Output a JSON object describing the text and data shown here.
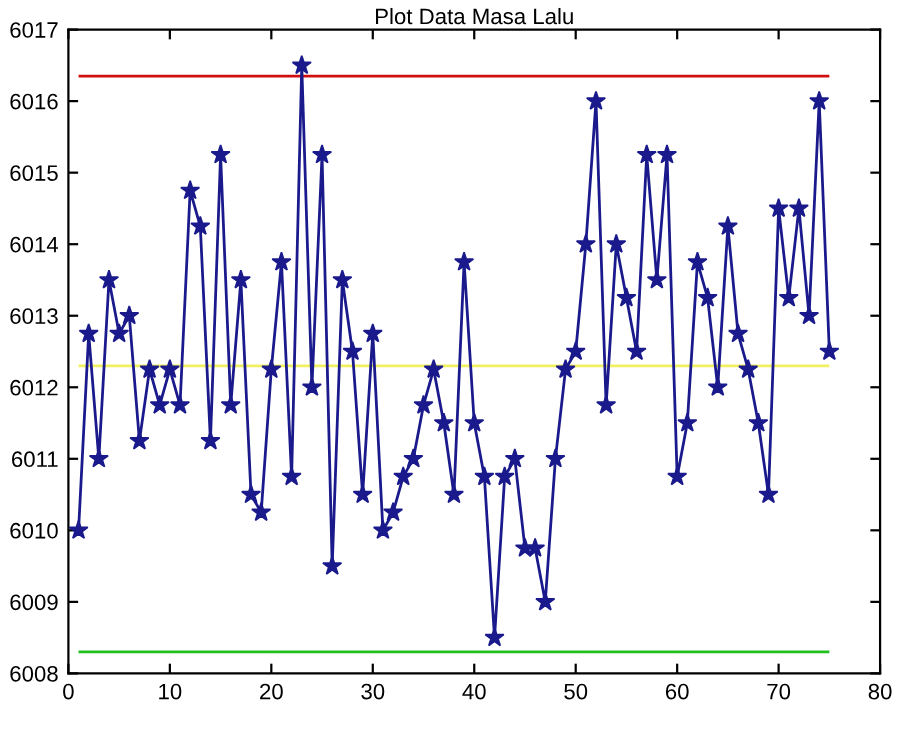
{
  "chart_data": {
    "type": "line",
    "title": "Plot Data Masa Lalu",
    "x": [
      1,
      2,
      3,
      4,
      5,
      6,
      7,
      8,
      9,
      10,
      11,
      12,
      13,
      14,
      15,
      16,
      17,
      18,
      19,
      20,
      21,
      22,
      23,
      24,
      25,
      26,
      27,
      28,
      29,
      30,
      31,
      32,
      33,
      34,
      35,
      36,
      37,
      38,
      39,
      40,
      41,
      42,
      43,
      44,
      45,
      46,
      47,
      48,
      49,
      50,
      51,
      52,
      53,
      54,
      55,
      56,
      57,
      58,
      59,
      60,
      61,
      62,
      63,
      64,
      65,
      66,
      67,
      68,
      69,
      70,
      71,
      72,
      73,
      74,
      75
    ],
    "series": [
      {
        "color": "#1a1a8c",
        "values": [
          6010,
          6012.75,
          6011,
          6013.5,
          6012.75,
          6013,
          6011.25,
          6012.25,
          6011.75,
          6012.25,
          6011.75,
          6014.75,
          6014.25,
          6011.25,
          6015.25,
          6011.75,
          6013.5,
          6010.5,
          6010.25,
          6012.25,
          6013.75,
          6010.75,
          6016.5,
          6012,
          6015.25,
          6009.5,
          6013.5,
          6012.5,
          6010.5,
          6012.75,
          6010,
          6010.25,
          6010.75,
          6011,
          6011.75,
          6012.25,
          6011.5,
          6010.5,
          6013.75,
          6011.5,
          6010.75,
          6008.5,
          6010.75,
          6011,
          6009.75,
          6009.75,
          6009,
          6011,
          6012.25,
          6012.5,
          6014,
          6016,
          6011.75,
          6014,
          6013.25,
          6012.5,
          6015.25,
          6013.5,
          6015.25,
          6010.75,
          6011.5,
          6013.75,
          6013.25,
          6012,
          6014.25,
          6012.75,
          6012.25,
          6011.5,
          6010.5,
          6014.5,
          6013.25,
          6014.5,
          6013,
          6016,
          6012.5
        ]
      }
    ],
    "marker": "star",
    "line_style": "solid",
    "ref_lines": [
      {
        "axis": "y",
        "value": 6016.35,
        "color": "#d01010"
      },
      {
        "axis": "y",
        "value": 6012.3,
        "color": "#f0f060"
      },
      {
        "axis": "y",
        "value": 6008.3,
        "color": "#20c020"
      }
    ],
    "xlim": [
      0,
      80
    ],
    "xticks": [
      0,
      10,
      20,
      30,
      40,
      50,
      60,
      70,
      80
    ],
    "ylim": [
      6008,
      6017
    ],
    "yticks": [
      6008,
      6009,
      6010,
      6011,
      6012,
      6013,
      6014,
      6015,
      6016,
      6017
    ],
    "grid": false,
    "legend": false
  }
}
